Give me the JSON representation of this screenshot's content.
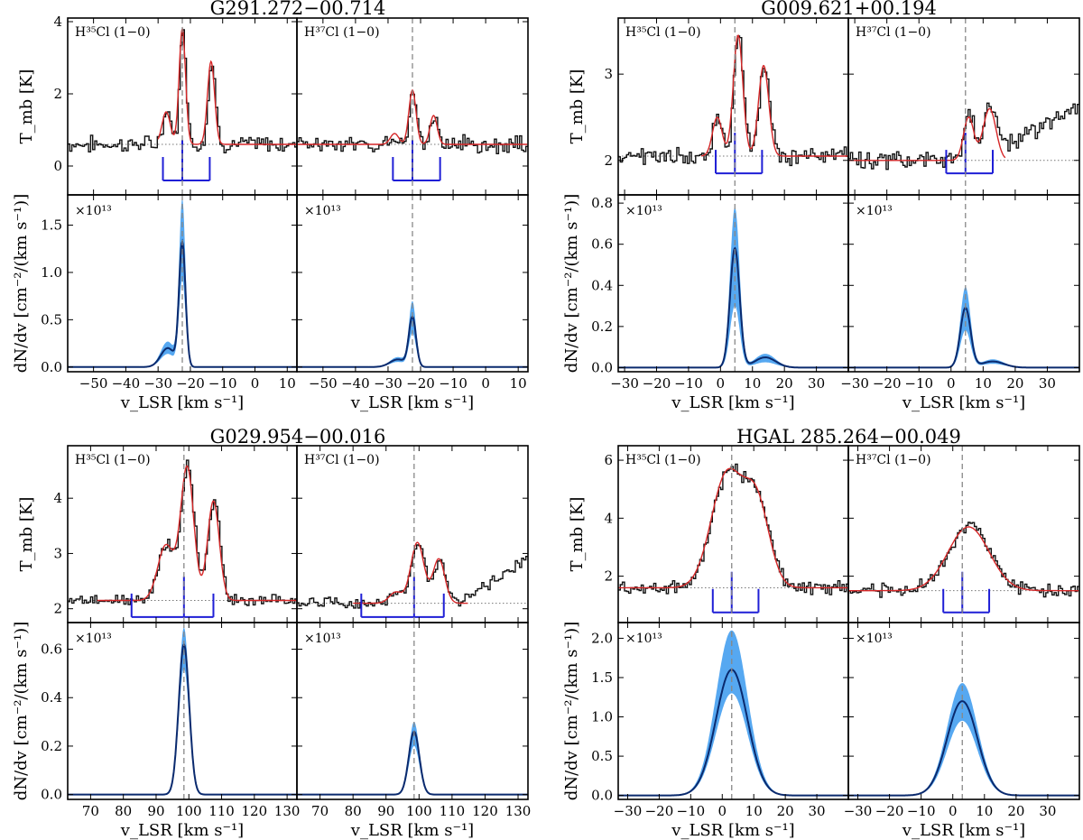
{
  "figure": {
    "xlabel": "v_LSR [km s⁻¹]",
    "top_ylabel": "T_mb [K]",
    "bottom_ylabel": "dN/dv [cm⁻²/(km s⁻¹)]",
    "scale_label": "×10¹³",
    "line_left": "H³⁵Cl (1−0)",
    "line_right": "H³⁷Cl (1−0)"
  },
  "colors": {
    "observed": "#111111",
    "model": "#d62728",
    "hfs": "#1f1fd6",
    "band": "#4da3f0",
    "column": "#0a2a6e",
    "guide": "#888888"
  },
  "chart_data": [
    {
      "type": "line",
      "title": "G291.272−00.714",
      "xlim": [
        -58,
        13
      ],
      "xticks": [
        -50,
        -40,
        -30,
        -20,
        -10,
        0,
        10
      ],
      "v0": -22.5,
      "hfs_offsets": [
        -6,
        0,
        8.5
      ],
      "spectrum": {
        "ylim": [
          -0.8,
          4.1
        ],
        "yticks": [
          0,
          2,
          4
        ],
        "baseline_left": 0.6,
        "baseline_right": 0.6,
        "hfs_scale": 1.0,
        "hfs_base": -0.4,
        "left_components": [
          {
            "v": -22.5,
            "amp": 3.2,
            "sigma": 1.0
          },
          {
            "v": -13.6,
            "amp": 2.3,
            "sigma": 1.1
          },
          {
            "v": -27.5,
            "amp": 0.9,
            "sigma": 1.3
          }
        ],
        "right_components": [
          {
            "v": -22.5,
            "amp": 1.5,
            "sigma": 1.1
          },
          {
            "v": -16.0,
            "amp": 0.8,
            "sigma": 1.1
          },
          {
            "v": -28.0,
            "amp": 0.3,
            "sigma": 1.3
          }
        ],
        "noise": 0.35,
        "model_range_left": [
          -30,
          13
        ],
        "model_range_right": [
          -58,
          13
        ]
      },
      "column": {
        "ylim": [
          -0.05,
          1.82
        ],
        "yticks": [
          0.0,
          0.5,
          1.0,
          1.5
        ],
        "left": {
          "peak": 1.3,
          "upper": 1.75,
          "lower": 0.9,
          "sigma": 1.0,
          "wing": 0.2,
          "wing_v": -27
        },
        "right": {
          "peak": 0.52,
          "upper": 0.68,
          "lower": 0.35,
          "sigma": 1.1,
          "wing": 0.08,
          "wing_v": -27
        }
      }
    },
    {
      "type": "line",
      "title": "G009.621+00.194",
      "xlim": [
        -32,
        40
      ],
      "xticks": [
        -30,
        -20,
        -10,
        0,
        10,
        20,
        30
      ],
      "v0": 4.5,
      "hfs_offsets": [
        -6,
        0,
        8.5
      ],
      "spectrum": {
        "ylim": [
          1.6,
          3.65
        ],
        "yticks": [
          2,
          3
        ],
        "baseline_left": 2.05,
        "baseline_right": 2.0,
        "hfs_scale": 0.38,
        "hfs_base": 1.85,
        "left_components": [
          {
            "v": 5.5,
            "amp": 1.4,
            "sigma": 1.5
          },
          {
            "v": 13.5,
            "amp": 1.05,
            "sigma": 1.6
          },
          {
            "v": -1.0,
            "amp": 0.45,
            "sigma": 1.5
          }
        ],
        "right_components": [
          {
            "v": 5.5,
            "amp": 0.5,
            "sigma": 1.6
          },
          {
            "v": 12.0,
            "amp": 0.6,
            "sigma": 2.0
          }
        ],
        "noise": 0.15,
        "model_range_left": [
          -6,
          40
        ],
        "model_range_right": [
          -32,
          17
        ]
      },
      "column": {
        "ylim": [
          -0.02,
          0.84
        ],
        "yticks": [
          0.0,
          0.2,
          0.4,
          0.6,
          0.8
        ],
        "left": {
          "peak": 0.58,
          "upper": 0.78,
          "lower": 0.3,
          "sigma": 1.5,
          "wing": 0.05,
          "wing_v": 14
        },
        "right": {
          "peak": 0.29,
          "upper": 0.39,
          "lower": 0.18,
          "sigma": 1.6,
          "wing": 0.03,
          "wing_v": 13
        }
      }
    },
    {
      "type": "line",
      "title": "G029.954−00.016",
      "xlim": [
        63,
        133
      ],
      "xticks": [
        70,
        80,
        90,
        100,
        110,
        120,
        130
      ],
      "v0": 98.5,
      "hfs_offsets": [
        -16,
        0,
        9
      ],
      "spectrum": {
        "ylim": [
          1.75,
          4.95
        ],
        "yticks": [
          2,
          3,
          4
        ],
        "baseline_left": 2.15,
        "baseline_right": 2.1,
        "hfs_scale": 0.55,
        "hfs_base": 1.85,
        "left_components": [
          {
            "v": 99.5,
            "amp": 2.4,
            "sigma": 2.0
          },
          {
            "v": 107.5,
            "amp": 1.8,
            "sigma": 1.8
          },
          {
            "v": 93.0,
            "amp": 1.0,
            "sigma": 2.5
          }
        ],
        "right_components": [
          {
            "v": 99.5,
            "amp": 1.1,
            "sigma": 2.0
          },
          {
            "v": 106.0,
            "amp": 0.8,
            "sigma": 1.8
          },
          {
            "v": 93.0,
            "amp": 0.2,
            "sigma": 2.0
          }
        ],
        "noise": 0.15,
        "model_range_left": [
          72,
          133
        ],
        "model_range_right": [
          80,
          115
        ]
      },
      "column": {
        "ylim": [
          -0.02,
          0.71
        ],
        "yticks": [
          0.0,
          0.2,
          0.4,
          0.6
        ],
        "left": {
          "peak": 0.62,
          "upper": 0.69,
          "lower": 0.52,
          "sigma": 1.6,
          "wing": 0.0,
          "wing_v": 99
        },
        "right": {
          "peak": 0.26,
          "upper": 0.3,
          "lower": 0.2,
          "sigma": 1.6,
          "wing": 0.0,
          "wing_v": 99
        }
      }
    },
    {
      "type": "line",
      "title": "HGAL 285.264−00.049",
      "xlim": [
        -33,
        40
      ],
      "xticks": [
        -30,
        -20,
        -10,
        0,
        10,
        20,
        30
      ],
      "v0": 3.0,
      "hfs_offsets": [
        -6,
        0,
        8.5
      ],
      "spectrum": {
        "ylim": [
          0.4,
          6.5
        ],
        "yticks": [
          2,
          4,
          6
        ],
        "baseline_left": 1.6,
        "baseline_right": 1.5,
        "hfs_scale": 1.0,
        "hfs_base": 0.75,
        "left_components": [
          {
            "v": 1.5,
            "amp": 3.9,
            "sigma": 5.0
          },
          {
            "v": 11.0,
            "amp": 2.8,
            "sigma": 4.0
          }
        ],
        "right_components": [
          {
            "v": 5.0,
            "amp": 2.2,
            "sigma": 6.5
          }
        ],
        "noise": 0.35,
        "model_range_left": [
          -33,
          40
        ],
        "model_range_right": [
          -33,
          40
        ]
      },
      "column": {
        "ylim": [
          -0.05,
          2.2
        ],
        "yticks": [
          0.0,
          0.5,
          1.0,
          1.5,
          2.0
        ],
        "left": {
          "peak": 1.6,
          "upper": 2.1,
          "lower": 1.3,
          "sigma": 5.0,
          "wing": 0.0,
          "wing_v": 3
        },
        "right": {
          "peak": 1.2,
          "upper": 1.43,
          "lower": 0.95,
          "sigma": 4.8,
          "wing": 0.0,
          "wing_v": 3
        }
      }
    }
  ]
}
